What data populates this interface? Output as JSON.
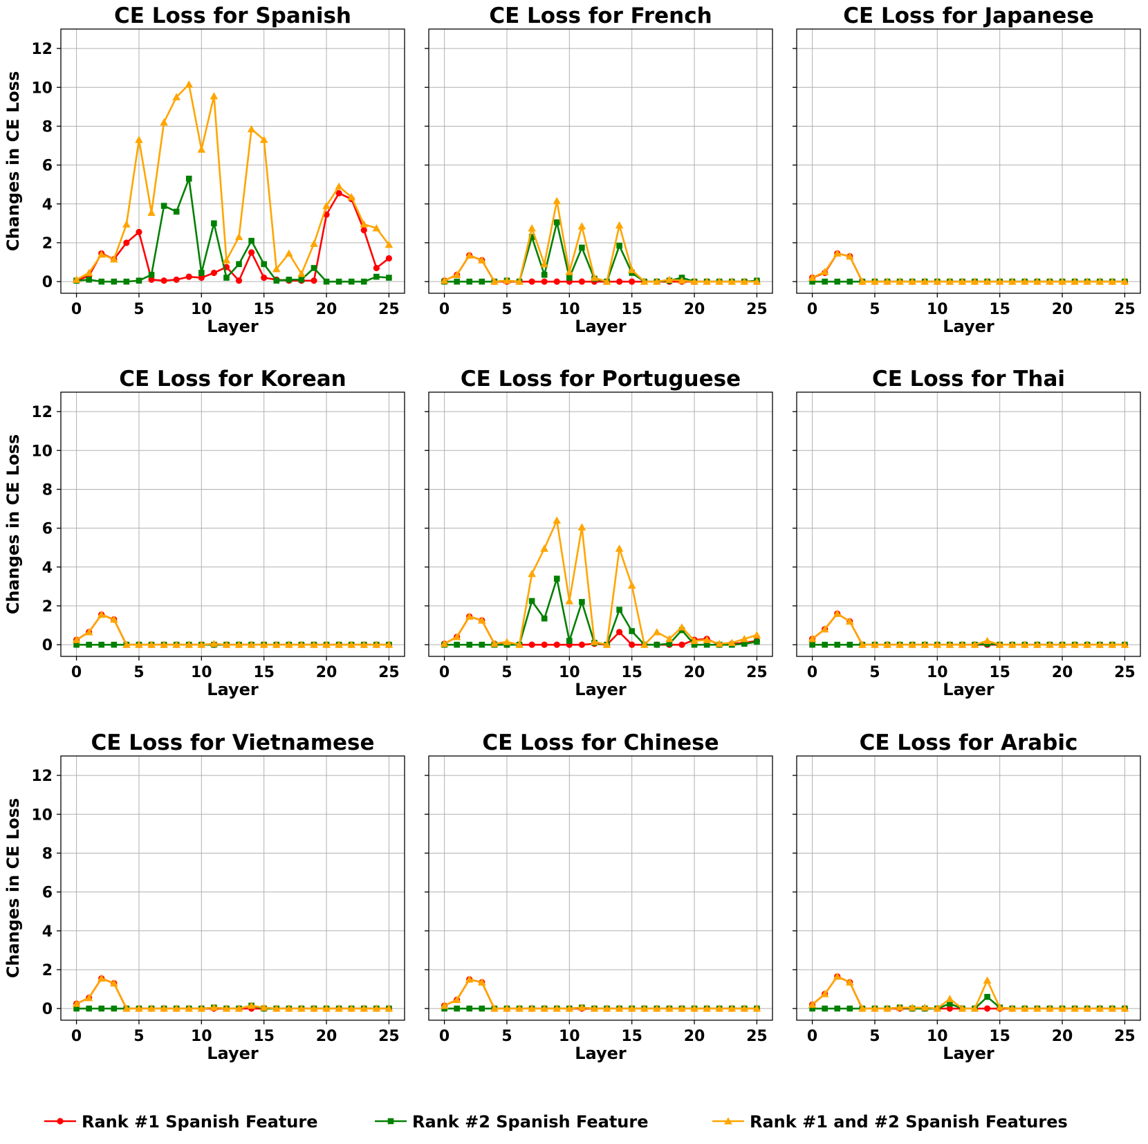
{
  "chart_data": {
    "type": "line",
    "layout": "3x3 grid, shared y axis per row",
    "xlim": [
      -1.25,
      26.25
    ],
    "ylim": [
      -0.6,
      13
    ],
    "x_ticks": [
      0,
      5,
      10,
      15,
      20,
      25
    ],
    "y_ticks": [
      0,
      2,
      4,
      6,
      8,
      10,
      12
    ],
    "grid": true,
    "x": [
      0,
      1,
      2,
      3,
      4,
      5,
      6,
      7,
      8,
      9,
      10,
      11,
      12,
      13,
      14,
      15,
      16,
      17,
      18,
      19,
      20,
      21,
      22,
      23,
      24,
      25
    ],
    "legend_position": "bottom-center",
    "legend": [
      {
        "label": "Rank #1 Spanish Feature",
        "color": "#ff0000",
        "marker": "circle"
      },
      {
        "label": "Rank #2  Spanish Feature",
        "color": "#008000",
        "marker": "square"
      },
      {
        "label": "Rank #1 and #2  Spanish Features",
        "color": "#ffa500",
        "marker": "triangle"
      }
    ],
    "panels": [
      {
        "title": "CE Loss for Spanish",
        "xlabel": "Layer",
        "ylabel": "Changes in CE Loss",
        "series": [
          {
            "values": [
              0.05,
              0.3,
              1.45,
              1.15,
              2.0,
              2.55,
              0.1,
              0.05,
              0.1,
              0.25,
              0.2,
              0.45,
              0.75,
              0.05,
              1.5,
              0.2,
              0.1,
              0.05,
              0.05,
              0.05,
              3.45,
              4.55,
              4.25,
              2.65,
              0.7,
              1.2
            ]
          },
          {
            "values": [
              0.05,
              0.1,
              0.0,
              0.0,
              0.0,
              0.05,
              0.35,
              3.9,
              3.6,
              5.3,
              0.45,
              3.0,
              0.2,
              0.9,
              2.1,
              0.9,
              0.05,
              0.1,
              0.1,
              0.7,
              0.0,
              0.0,
              0.0,
              0.0,
              0.25,
              0.2
            ]
          },
          {
            "values": [
              0.1,
              0.45,
              1.4,
              1.15,
              2.95,
              7.3,
              3.55,
              8.2,
              9.5,
              10.15,
              6.8,
              9.55,
              1.1,
              2.3,
              7.85,
              7.3,
              0.65,
              1.45,
              0.4,
              1.95,
              3.9,
              4.9,
              4.35,
              2.95,
              2.75,
              1.9
            ]
          }
        ]
      },
      {
        "title": "CE Loss for French",
        "xlabel": "Layer",
        "ylabel": "",
        "series": [
          {
            "values": [
              0.05,
              0.35,
              1.35,
              1.1,
              0,
              0,
              0,
              0,
              0,
              0,
              0,
              0,
              0,
              0,
              0,
              0,
              0,
              0,
              0,
              0,
              0,
              0,
              0,
              0,
              0,
              0
            ]
          },
          {
            "values": [
              0,
              0,
              0,
              0,
              0,
              0.05,
              0,
              2.3,
              0.35,
              3.05,
              0.2,
              1.75,
              0.15,
              0,
              1.85,
              0.45,
              0,
              0,
              0.05,
              0.2,
              0,
              0,
              0,
              0,
              0,
              0.05
            ]
          },
          {
            "values": [
              0.05,
              0.35,
              1.35,
              1.1,
              0,
              0.05,
              0,
              2.75,
              0.9,
              4.15,
              0.5,
              2.85,
              0.2,
              0,
              2.9,
              0.6,
              0,
              0,
              0.1,
              0.05,
              0,
              0,
              0,
              0,
              0,
              0
            ]
          }
        ]
      },
      {
        "title": "CE Loss for Japanese",
        "xlabel": "Layer",
        "ylabel": "",
        "series": [
          {
            "values": [
              0.2,
              0.45,
              1.45,
              1.3,
              0,
              0,
              0,
              0,
              0,
              0,
              0,
              0,
              0,
              0,
              0,
              0,
              0,
              0,
              0,
              0,
              0,
              0,
              0,
              0,
              0,
              0
            ]
          },
          {
            "values": [
              0,
              0,
              0,
              0,
              0,
              0,
              0,
              0,
              0,
              0,
              0,
              0,
              0,
              0,
              0,
              0,
              0,
              0,
              0,
              0,
              0,
              0,
              0,
              0,
              0,
              0
            ]
          },
          {
            "values": [
              0.2,
              0.5,
              1.45,
              1.3,
              0,
              0,
              0,
              0,
              0,
              0,
              0,
              0,
              0,
              0,
              0,
              0,
              0,
              0,
              0,
              0,
              0,
              0,
              0,
              0,
              0,
              0
            ]
          }
        ]
      },
      {
        "title": "CE Loss for Korean",
        "xlabel": "Layer",
        "ylabel": "Changes in CE Loss",
        "series": [
          {
            "values": [
              0.25,
              0.65,
              1.55,
              1.3,
              0,
              0,
              0,
              0,
              0,
              0,
              0,
              0,
              0,
              0,
              0,
              0,
              0,
              0,
              0,
              0,
              0,
              0,
              0,
              0,
              0,
              0
            ]
          },
          {
            "values": [
              0,
              0,
              0,
              0,
              0,
              0,
              0,
              0,
              0,
              0,
              0,
              0,
              0,
              0,
              0,
              0,
              0,
              0,
              0,
              0,
              0,
              0,
              0,
              0,
              0,
              0
            ]
          },
          {
            "values": [
              0.25,
              0.65,
              1.55,
              1.3,
              0,
              0,
              0,
              0,
              0,
              0,
              0,
              0.05,
              0,
              0,
              0,
              0,
              0,
              0,
              0,
              0,
              0,
              0,
              0,
              0,
              0,
              0
            ]
          }
        ]
      },
      {
        "title": "CE Loss for Portuguese",
        "xlabel": "Layer",
        "ylabel": "",
        "series": [
          {
            "values": [
              0.05,
              0.4,
              1.45,
              1.25,
              0.05,
              0,
              0,
              0,
              0,
              0,
              0,
              0,
              0.05,
              0,
              0.65,
              0,
              0,
              0,
              0,
              0,
              0.25,
              0.3,
              0,
              0.05,
              0.1,
              0.2
            ]
          },
          {
            "values": [
              0,
              0,
              0,
              0,
              0,
              0,
              0,
              2.25,
              1.35,
              3.4,
              0.2,
              2.2,
              0.1,
              0,
              1.8,
              0.7,
              0,
              0,
              0.05,
              0.75,
              0,
              0,
              0,
              0,
              0.05,
              0.15
            ]
          },
          {
            "values": [
              0.05,
              0.4,
              1.45,
              1.25,
              0.05,
              0.15,
              0,
              3.65,
              4.95,
              6.4,
              2.25,
              6.05,
              0.15,
              0,
              4.95,
              3.05,
              0,
              0.65,
              0.3,
              0.9,
              0.2,
              0.25,
              0.05,
              0.1,
              0.3,
              0.5
            ]
          }
        ]
      },
      {
        "title": "CE Loss for Thai",
        "xlabel": "Layer",
        "ylabel": "",
        "series": [
          {
            "values": [
              0.3,
              0.8,
              1.6,
              1.2,
              0,
              0,
              0,
              0,
              0,
              0,
              0,
              0,
              0,
              0,
              0,
              0,
              0,
              0,
              0,
              0,
              0,
              0,
              0,
              0,
              0,
              0
            ]
          },
          {
            "values": [
              0,
              0,
              0,
              0,
              0,
              0,
              0,
              0,
              0,
              0,
              0,
              0,
              0,
              0,
              0.05,
              0,
              0,
              0,
              0,
              0,
              0,
              0,
              0,
              0,
              0,
              0
            ]
          },
          {
            "values": [
              0.3,
              0.8,
              1.6,
              1.2,
              0,
              0,
              0,
              0,
              0,
              0,
              0,
              0,
              0,
              0,
              0.2,
              0,
              0,
              0,
              0,
              0,
              0,
              0,
              0,
              0,
              0,
              0
            ]
          }
        ]
      },
      {
        "title": "CE Loss for Vietnamese",
        "xlabel": "Layer",
        "ylabel": "Changes in CE Loss",
        "series": [
          {
            "values": [
              0.25,
              0.55,
              1.55,
              1.3,
              0,
              0,
              0,
              0,
              0,
              0,
              0,
              0,
              0,
              0,
              0,
              0,
              0,
              0,
              0,
              0,
              0,
              0,
              0,
              0,
              0,
              0
            ]
          },
          {
            "values": [
              0,
              0,
              0,
              0,
              0,
              0,
              0,
              0,
              0,
              0,
              0,
              0.05,
              0,
              0,
              0.15,
              0,
              0,
              0,
              0,
              0,
              0,
              0,
              0,
              0,
              0,
              0
            ]
          },
          {
            "values": [
              0.25,
              0.55,
              1.55,
              1.3,
              0,
              0,
              0,
              0,
              0,
              0,
              0,
              0.05,
              0,
              0,
              0.15,
              0.05,
              0,
              0,
              0,
              0,
              0,
              0,
              0,
              0,
              0,
              0
            ]
          }
        ]
      },
      {
        "title": "CE Loss for Chinese",
        "xlabel": "Layer",
        "ylabel": "",
        "series": [
          {
            "values": [
              0.15,
              0.45,
              1.5,
              1.35,
              0,
              0,
              0,
              0,
              0,
              0,
              0,
              0,
              0,
              0,
              0,
              0,
              0,
              0,
              0,
              0,
              0,
              0,
              0,
              0,
              0,
              0
            ]
          },
          {
            "values": [
              0,
              0,
              0,
              0,
              0,
              0,
              0,
              0,
              0,
              0,
              0,
              0.05,
              0,
              0,
              0,
              0,
              0,
              0,
              0,
              0,
              0,
              0,
              0,
              0,
              0,
              0
            ]
          },
          {
            "values": [
              0.15,
              0.45,
              1.5,
              1.35,
              0,
              0,
              0,
              0,
              0,
              0,
              0,
              0.05,
              0,
              0,
              0,
              0,
              0,
              0,
              0,
              0,
              0,
              0,
              0,
              0,
              0,
              0
            ]
          }
        ]
      },
      {
        "title": "CE Loss for Arabic",
        "xlabel": "Layer",
        "ylabel": "",
        "series": [
          {
            "values": [
              0.2,
              0.75,
              1.65,
              1.35,
              0,
              0,
              0,
              0,
              0,
              0,
              0,
              0,
              0,
              0,
              0,
              0,
              0,
              0,
              0,
              0,
              0,
              0,
              0,
              0,
              0,
              0
            ]
          },
          {
            "values": [
              0,
              0,
              0,
              0,
              0,
              0,
              0,
              0.05,
              0,
              0,
              0,
              0.25,
              0,
              0,
              0.6,
              0.05,
              0,
              0,
              0,
              0,
              0,
              0,
              0,
              0,
              0,
              0
            ]
          },
          {
            "values": [
              0.2,
              0.75,
              1.65,
              1.35,
              0,
              0,
              0,
              0.05,
              0.05,
              0.05,
              0,
              0.5,
              0,
              0,
              1.45,
              0.05,
              0,
              0,
              0,
              0,
              0,
              0,
              0,
              0,
              0,
              0
            ]
          }
        ]
      }
    ]
  }
}
